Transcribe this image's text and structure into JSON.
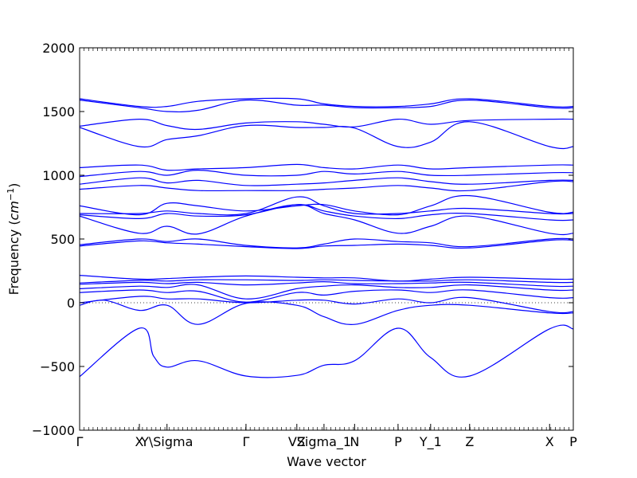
{
  "chart_data": {
    "type": "line",
    "xlabel": "Wave vector",
    "ylabel": "Frequency (",
    "ylabel_unit": "cm",
    "ylabel_exp": "−1",
    "ylabel_close": ")",
    "ylim": [
      -1000,
      2000
    ],
    "yticks": [
      -1000,
      -500,
      0,
      500,
      1000,
      1500,
      2000
    ],
    "ytick_labels": [
      "−1000",
      "−500",
      "0",
      "500",
      "1000",
      "1500",
      "2000"
    ],
    "xlim": [
      0,
      1
    ],
    "xticks": [
      {
        "label": "Γ",
        "x": 0.0
      },
      {
        "label": "X",
        "x": 0.121
      },
      {
        "label": "Y\\Sigma",
        "x": 0.177
      },
      {
        "label": "Γ",
        "x": 0.337
      },
      {
        "label": "VZ",
        "x": 0.44
      },
      {
        "label": "Sigma_1",
        "x": 0.495
      },
      {
        "label": "N",
        "x": 0.557
      },
      {
        "label": "P",
        "x": 0.645
      },
      {
        "label": "Y_1",
        "x": 0.711
      },
      {
        "label": "Z",
        "x": 0.79
      },
      {
        "label": "X",
        "x": 0.952
      },
      {
        "label": "P",
        "x": 1.0
      }
    ],
    "grid": false,
    "zero_line": "dotted",
    "line_color": "#0000ff",
    "series": [
      {
        "x": [
          0,
          0.121,
          0.15,
          0.177,
          0.24,
          0.337,
          0.44,
          0.495,
          0.557,
          0.645,
          0.711,
          0.79,
          0.952,
          1
        ],
        "values": [
          -580,
          -200,
          -420,
          -505,
          -455,
          -575,
          -570,
          -490,
          -455,
          -200,
          -430,
          -575,
          -205,
          -205
        ]
      },
      {
        "x": [
          0,
          0.05,
          0.121,
          0.177,
          0.24,
          0.337,
          0.44,
          0.495,
          0.557,
          0.645,
          0.711,
          0.79,
          0.952,
          1
        ],
        "values": [
          -20,
          20,
          -60,
          -20,
          -170,
          -5,
          -20,
          -110,
          -170,
          -60,
          -20,
          -20,
          -80,
          -80
        ]
      },
      {
        "x": [
          0,
          0.121,
          0.177,
          0.24,
          0.337,
          0.44,
          0.495,
          0.557,
          0.645,
          0.711,
          0.79,
          0.952,
          1
        ],
        "values": [
          0,
          50,
          30,
          30,
          0,
          20,
          20,
          -10,
          30,
          0,
          40,
          -70,
          -70
        ]
      },
      {
        "x": [
          0,
          0.121,
          0.177,
          0.24,
          0.337,
          0.44,
          0.495,
          0.557,
          0.645,
          0.711,
          0.79,
          0.952,
          1
        ],
        "values": [
          80,
          100,
          80,
          90,
          5,
          80,
          60,
          90,
          100,
          80,
          100,
          40,
          40
        ]
      },
      {
        "x": [
          0,
          0.121,
          0.177,
          0.24,
          0.337,
          0.44,
          0.495,
          0.557,
          0.645,
          0.711,
          0.79,
          0.952,
          1
        ],
        "values": [
          110,
          130,
          120,
          140,
          30,
          110,
          130,
          140,
          120,
          120,
          140,
          100,
          100
        ]
      },
      {
        "x": [
          0,
          0.121,
          0.177,
          0.24,
          0.337,
          0.44,
          0.495,
          0.557,
          0.645,
          0.711,
          0.79,
          0.952,
          1
        ],
        "values": [
          145,
          160,
          150,
          160,
          140,
          155,
          165,
          150,
          150,
          155,
          160,
          130,
          130
        ]
      },
      {
        "x": [
          0,
          0.121,
          0.177,
          0.24,
          0.337,
          0.44,
          0.495,
          0.557,
          0.645,
          0.711,
          0.79,
          0.952,
          1
        ],
        "values": [
          155,
          175,
          170,
          180,
          180,
          175,
          180,
          175,
          170,
          170,
          180,
          160,
          160
        ]
      },
      {
        "x": [
          0,
          0.121,
          0.177,
          0.24,
          0.337,
          0.44,
          0.495,
          0.557,
          0.645,
          0.711,
          0.79,
          0.952,
          1
        ],
        "values": [
          215,
          185,
          190,
          200,
          210,
          200,
          195,
          195,
          170,
          185,
          200,
          185,
          185
        ]
      },
      {
        "x": [
          0,
          0.121,
          0.177,
          0.24,
          0.337,
          0.44,
          0.495,
          0.557,
          0.645,
          0.711,
          0.79,
          0.952,
          1
        ],
        "values": [
          445,
          485,
          470,
          460,
          440,
          425,
          445,
          450,
          460,
          450,
          430,
          490,
          490
        ]
      },
      {
        "x": [
          0,
          0.121,
          0.177,
          0.24,
          0.337,
          0.44,
          0.495,
          0.557,
          0.645,
          0.711,
          0.79,
          0.952,
          1
        ],
        "values": [
          455,
          500,
          480,
          500,
          450,
          430,
          460,
          500,
          480,
          470,
          440,
          500,
          500
        ]
      },
      {
        "x": [
          0,
          0.121,
          0.177,
          0.24,
          0.337,
          0.44,
          0.495,
          0.557,
          0.645,
          0.711,
          0.79,
          0.952,
          1
        ],
        "values": [
          680,
          545,
          600,
          540,
          680,
          770,
          700,
          650,
          545,
          600,
          680,
          545,
          545
        ]
      },
      {
        "x": [
          0,
          0.121,
          0.177,
          0.24,
          0.337,
          0.44,
          0.495,
          0.557,
          0.645,
          0.711,
          0.79,
          0.952,
          1
        ],
        "values": [
          690,
          660,
          700,
          680,
          690,
          770,
          720,
          680,
          660,
          690,
          700,
          650,
          650
        ]
      },
      {
        "x": [
          0,
          0.121,
          0.177,
          0.24,
          0.337,
          0.44,
          0.495,
          0.557,
          0.645,
          0.711,
          0.79,
          0.952,
          1
        ],
        "values": [
          700,
          700,
          720,
          700,
          700,
          830,
          760,
          700,
          700,
          720,
          740,
          700,
          700
        ]
      },
      {
        "x": [
          0,
          0.121,
          0.177,
          0.24,
          0.337,
          0.44,
          0.495,
          0.557,
          0.645,
          0.711,
          0.79,
          0.952,
          1
        ],
        "values": [
          760,
          690,
          780,
          760,
          720,
          760,
          770,
          720,
          690,
          760,
          840,
          710,
          710
        ]
      },
      {
        "x": [
          0,
          0.121,
          0.177,
          0.24,
          0.337,
          0.44,
          0.495,
          0.557,
          0.645,
          0.711,
          0.79,
          0.952,
          1
        ],
        "values": [
          890,
          920,
          900,
          880,
          880,
          880,
          890,
          900,
          920,
          900,
          880,
          950,
          950
        ]
      },
      {
        "x": [
          0,
          0.121,
          0.177,
          0.24,
          0.337,
          0.44,
          0.495,
          0.557,
          0.645,
          0.711,
          0.79,
          0.952,
          1
        ],
        "values": [
          930,
          980,
          940,
          960,
          920,
          930,
          940,
          960,
          980,
          950,
          930,
          960,
          960
        ]
      },
      {
        "x": [
          0,
          0.121,
          0.177,
          0.24,
          0.337,
          0.44,
          0.495,
          0.557,
          0.645,
          0.711,
          0.79,
          0.952,
          1
        ],
        "values": [
          990,
          1030,
          1000,
          1040,
          1000,
          1000,
          1030,
          1010,
          1030,
          1000,
          1000,
          1020,
          1020
        ]
      },
      {
        "x": [
          0,
          0.121,
          0.177,
          0.24,
          0.337,
          0.44,
          0.495,
          0.557,
          0.645,
          0.711,
          0.79,
          0.952,
          1
        ],
        "values": [
          1060,
          1080,
          1040,
          1050,
          1060,
          1085,
          1060,
          1050,
          1080,
          1050,
          1060,
          1080,
          1080
        ]
      },
      {
        "x": [
          0,
          0.121,
          0.177,
          0.24,
          0.337,
          0.44,
          0.495,
          0.557,
          0.645,
          0.711,
          0.79,
          0.952,
          1
        ],
        "values": [
          1375,
          1225,
          1280,
          1310,
          1390,
          1375,
          1375,
          1370,
          1225,
          1260,
          1420,
          1225,
          1225
        ]
      },
      {
        "x": [
          0,
          0.121,
          0.177,
          0.24,
          0.337,
          0.44,
          0.495,
          0.557,
          0.645,
          0.711,
          0.79,
          0.952,
          1
        ],
        "values": [
          1385,
          1440,
          1390,
          1360,
          1410,
          1420,
          1400,
          1380,
          1440,
          1400,
          1430,
          1440,
          1440
        ]
      },
      {
        "x": [
          0,
          0.121,
          0.177,
          0.24,
          0.337,
          0.44,
          0.495,
          0.557,
          0.645,
          0.711,
          0.79,
          0.952,
          1
        ],
        "values": [
          1600,
          1540,
          1540,
          1580,
          1600,
          1600,
          1560,
          1540,
          1540,
          1560,
          1600,
          1540,
          1540
        ]
      },
      {
        "x": [
          0,
          0.121,
          0.177,
          0.24,
          0.337,
          0.44,
          0.495,
          0.557,
          0.645,
          0.711,
          0.79,
          0.952,
          1
        ],
        "values": [
          1590,
          1530,
          1500,
          1510,
          1590,
          1550,
          1550,
          1530,
          1530,
          1540,
          1590,
          1530,
          1530
        ]
      }
    ]
  }
}
